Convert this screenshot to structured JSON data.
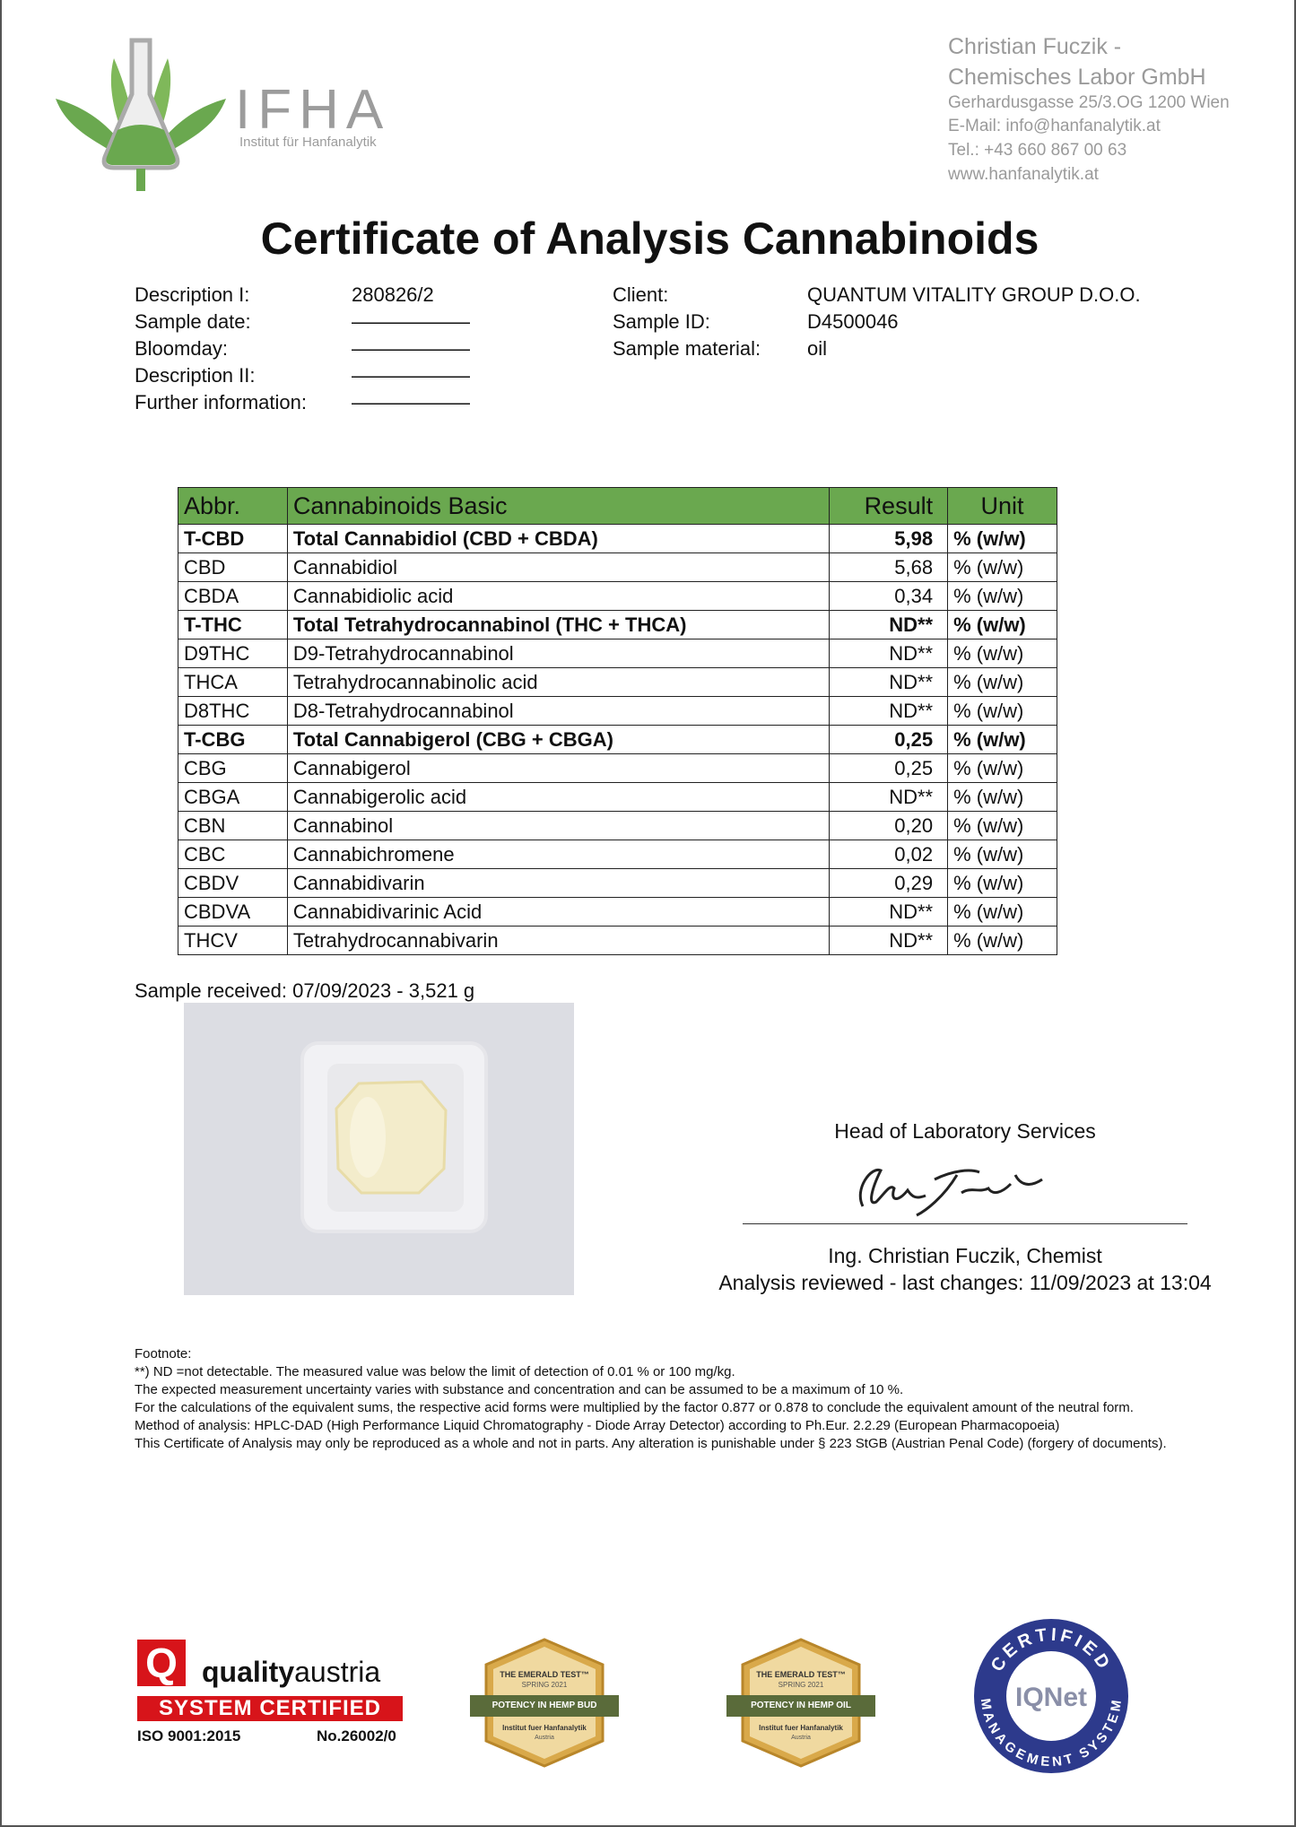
{
  "header": {
    "logo_name": "IFHA",
    "logo_subtitle": "Institut für Hanfanalytik",
    "lab": [
      "Christian Fuczik -",
      "Chemisches Labor GmbH",
      "Gerhardusgasse 25/3.OG 1200 Wien",
      "E-Mail: info@hanfanalytik.at",
      "Tel.: +43 660 867 00 63",
      "www.hanfanalytik.at"
    ]
  },
  "title": "Certificate of Analysis Cannabinoids",
  "info": {
    "left": [
      [
        "Description I:",
        "280826/2"
      ],
      [
        "Sample date:",
        "——————"
      ],
      [
        "Bloomday:",
        "——————"
      ],
      [
        "Description II:",
        "——————"
      ],
      [
        "Further information:",
        "——————"
      ]
    ],
    "right": [
      [
        "Client:",
        "QUANTUM VITALITY GROUP D.O.O."
      ],
      [
        "Sample ID:",
        "D4500046"
      ],
      [
        "Sample material:",
        "oil"
      ]
    ]
  },
  "table": {
    "header": [
      "Abbr.",
      "Cannabinoids Basic",
      "Result",
      "Unit"
    ],
    "rows": [
      [
        "T-CBD",
        "Total Cannabidiol (CBD + CBDA)",
        "5,98",
        "% (w/w)"
      ],
      [
        "CBD",
        "Cannabidiol",
        "5,68",
        "% (w/w)"
      ],
      [
        "CBDA",
        "Cannabidiolic acid",
        "0,34",
        "% (w/w)"
      ],
      [
        "T-THC",
        "Total Tetrahydrocannabinol (THC + THCA)",
        "ND**",
        "% (w/w)"
      ],
      [
        "D9THC",
        "D9-Tetrahydrocannabinol",
        "ND**",
        "% (w/w)"
      ],
      [
        "THCA",
        "Tetrahydrocannabinolic acid",
        "ND**",
        "% (w/w)"
      ],
      [
        "D8THC",
        "D8-Tetrahydrocannabinol",
        "ND**",
        "% (w/w)"
      ],
      [
        "T-CBG",
        "Total Cannabigerol (CBG + CBGA)",
        "0,25",
        "% (w/w)"
      ],
      [
        "CBG",
        "Cannabigerol",
        "0,25",
        "% (w/w)"
      ],
      [
        "CBGA",
        "Cannabigerolic acid",
        "ND**",
        "% (w/w)"
      ],
      [
        "CBN",
        "Cannabinol",
        "0,20",
        "% (w/w)"
      ],
      [
        "CBC",
        "Cannabichromene",
        "0,02",
        "% (w/w)"
      ],
      [
        "CBDV",
        "Cannabidivarin",
        "0,29",
        "% (w/w)"
      ],
      [
        "CBDVA",
        "Cannabidivarinic Acid",
        "ND**",
        "% (w/w)"
      ],
      [
        "THCV",
        "Tetrahydrocannabivarin",
        "ND**",
        "% (w/w)"
      ]
    ]
  },
  "sample_received": "Sample received: 07/09/2023 - 3,521 g",
  "signature": {
    "role": "Head of Laboratory Services",
    "name": "Ing. Christian Fuczik, Chemist",
    "reviewed": "Analysis reviewed - last changes: 11/09/2023 at 13:04"
  },
  "footnote": [
    "Footnote:",
    "**) ND =not detectable. The measured value was below the limit of detection of 0.01 % or 100 mg/kg.",
    "The expected measurement uncertainty varies with substance and concentration and can be assumed to be a maximum of 10 %.",
    "For the calculations of the equivalent sums, the respective acid forms were multiplied by the factor 0.877 or 0.878 to conclude the equivalent amount of the neutral form.",
    "Method of analysis: HPLC-DAD (High Performance Liquid Chromatography - Diode Array Detector) according to Ph.Eur. 2.2.29 (European Pharmacopoeia)",
    "This Certificate of Analysis may only be reproduced as a whole and not in parts. Any alteration is punishable under § 223 StGB (Austrian Penal Code) (forgery of documents)."
  ],
  "certifications": {
    "quality_austria": {
      "mark": "Q",
      "brand_bold": "quality",
      "brand": "austria",
      "label": "SYSTEM CERTIFIED",
      "standard": "ISO 9001:2015",
      "number": "No.26002/0"
    },
    "emerald_bud": {
      "title": "THE EMERALD TEST™",
      "season": "SPRING 2021",
      "ribbon": "POTENCY IN HEMP BUD",
      "lab": "Institut fuer Hanfanalytik",
      "country": "Austria"
    },
    "emerald_oil": {
      "title": "THE EMERALD TEST™",
      "season": "SPRING 2021",
      "ribbon": "POTENCY IN HEMP OIL",
      "lab": "Institut fuer Hanfanalytik",
      "country": "Austria"
    },
    "iqnet": {
      "top": "CERTIFIED",
      "logo": "IQNet",
      "bottom": "MANAGEMENT SYSTEM"
    }
  }
}
